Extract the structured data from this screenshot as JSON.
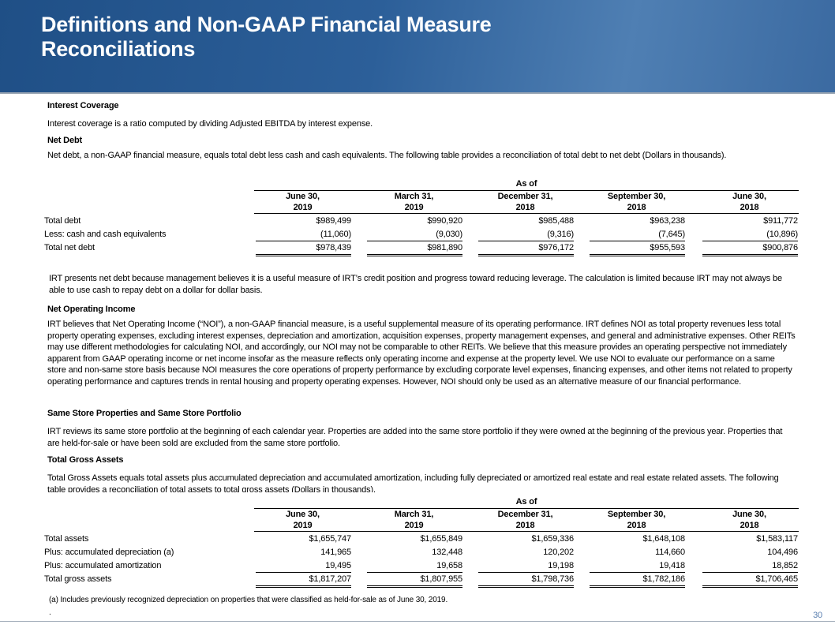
{
  "header": {
    "title": "Definitions and Non-GAAP Financial Measure Reconciliations"
  },
  "interest_coverage": {
    "heading": "Interest Coverage",
    "text": "Interest coverage is a ratio computed by dividing Adjusted EBITDA by interest expense."
  },
  "net_debt": {
    "heading": "Net Debt",
    "text": "Net debt, a non-GAAP financial measure, equals total debt less cash and cash equivalents. The following table provides a reconciliation of total debt to net debt (Dollars in thousands).",
    "table": {
      "group_header": "As of",
      "columns": [
        "June 30,\n2019",
        "March 31,\n2019",
        "December 31,\n2018",
        "September 30,\n2018",
        "June 30,\n2018"
      ],
      "rows": [
        {
          "label": "Total debt",
          "values": [
            "$989,499",
            "$990,920",
            "$985,488",
            "$963,238",
            "$911,772"
          ]
        },
        {
          "label": "Less: cash and cash equivalents",
          "values": [
            "(11,060)",
            "(9,030)",
            "(9,316)",
            "(7,645)",
            "(10,896)"
          ]
        },
        {
          "label": "Total net debt",
          "values": [
            "$978,439",
            "$981,890",
            "$976,172",
            "$955,593",
            "$900,876"
          ]
        }
      ]
    },
    "note": "IRT presents net debt because management believes it is a useful measure of IRT’s credit position and progress toward reducing leverage.  The calculation is limited because IRT may not always be able to use cash to repay debt on a dollar for dollar basis."
  },
  "noi": {
    "heading": "Net Operating Income",
    "text": "IRT believes that Net Operating Income (“NOI”), a non-GAAP financial measure, is a useful supplemental measure of its operating performance. IRT defines NOI as total property revenues less total property operating expenses, excluding interest expenses, depreciation and amortization, acquisition expenses, property management expenses, and general and administrative expenses. Other REITs may use different methodologies for calculating NOI, and accordingly, our NOI may not be comparable to other REITs. We believe that this measure provides an operating perspective not immediately apparent from GAAP operating income or net income insofar as the measure reflects only operating income and expense at the property level. We use NOI to evaluate our performance on a same store and non-same store basis because NOI measures the core operations of property performance by excluding corporate level expenses, financing expenses, and other items not related to property operating performance and captures trends in rental housing and property operating expenses. However, NOI should only be used as an alternative measure of our financial performance."
  },
  "same_store": {
    "heading": "Same Store Properties and Same Store Portfolio",
    "text": "IRT reviews its same store portfolio at the beginning of each calendar year.  Properties are added into the same store portfolio if they were owned at the beginning of the previous year.  Properties that are held-for-sale or have been sold are excluded from the same store portfolio."
  },
  "total_gross_assets": {
    "heading": "Total Gross Assets",
    "text": "Total Gross Assets equals total assets plus accumulated depreciation and accumulated amortization, including fully depreciated or amortized real estate and real estate related assets. The following table provides a reconciliation of total assets to total gross assets (Dollars in thousands).",
    "table": {
      "group_header": "As of",
      "columns": [
        "June 30,\n2019",
        "March 31,\n2019",
        "December 31,\n2018",
        "September 30,\n2018",
        "June 30,\n2018"
      ],
      "rows": [
        {
          "label": "Total assets",
          "values": [
            "$1,655,747",
            "$1,655,849",
            "$1,659,336",
            "$1,648,108",
            "$1,583,117"
          ]
        },
        {
          "label": "Plus: accumulated depreciation (a)",
          "values": [
            "141,965",
            "132,448",
            "120,202",
            "114,660",
            "104,496"
          ]
        },
        {
          "label": "Plus: accumulated amortization",
          "values": [
            "19,495",
            "19,658",
            "19,198",
            "19,418",
            "18,852"
          ]
        },
        {
          "label": "Total gross assets",
          "values": [
            "$1,817,207",
            "$1,807,955",
            "$1,798,736",
            "$1,782,186",
            "$1,706,465"
          ]
        }
      ]
    },
    "footnote": "(a) Includes previously recognized depreciation on properties that were classified as held-for-sale as of June 30, 2019."
  },
  "footer": {
    "mark": ".",
    "page_number": "30"
  }
}
